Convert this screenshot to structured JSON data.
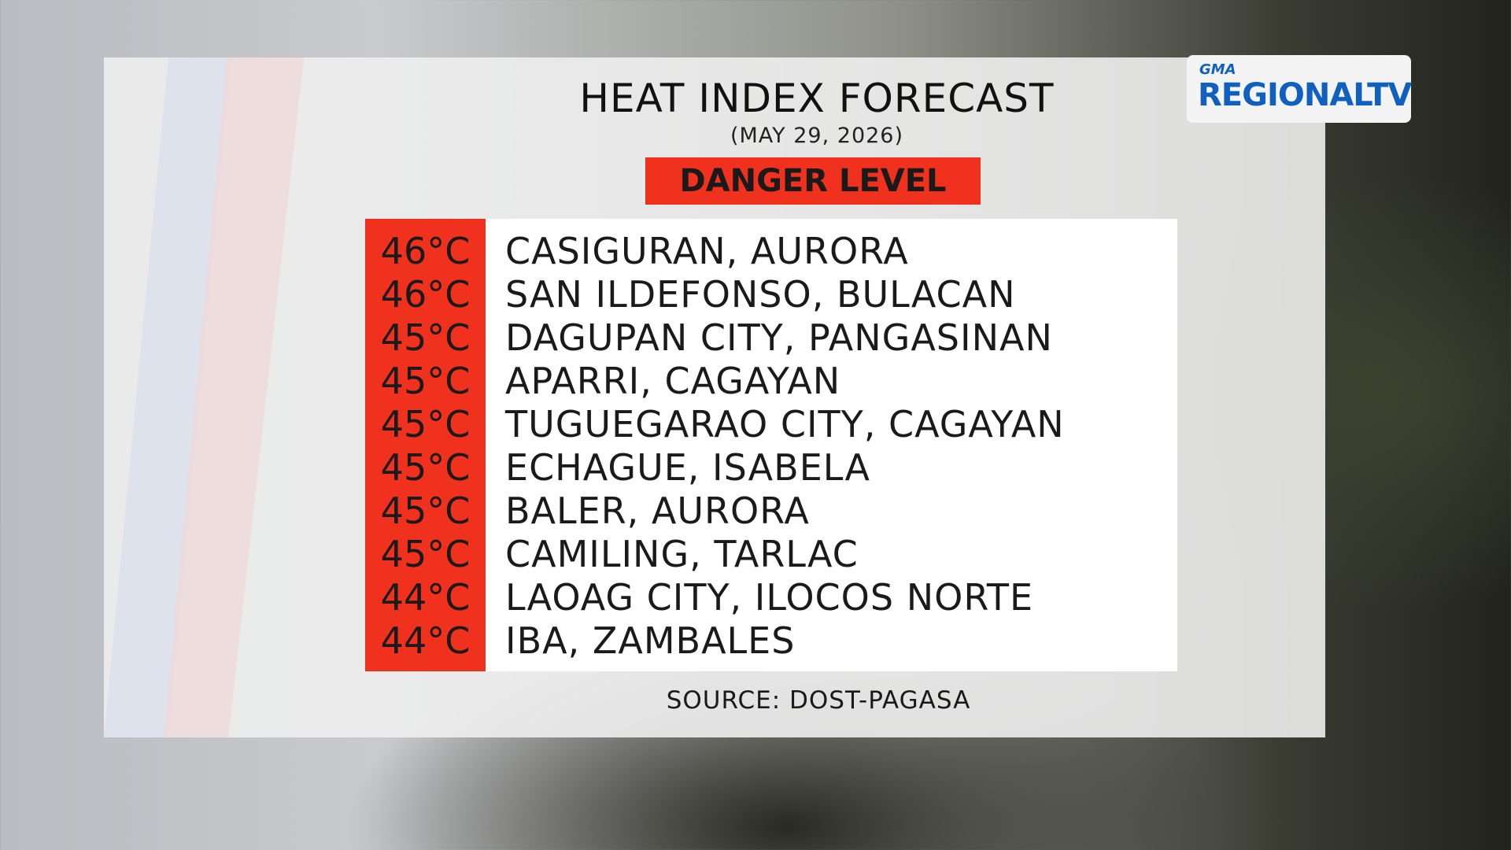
{
  "logo": {
    "brand": "GMA",
    "name": "REGIONALTV"
  },
  "header": {
    "title": "HEAT INDEX FORECAST",
    "date": "(MAY 29, 2026)"
  },
  "level": "DANGER LEVEL",
  "table": {
    "rows": [
      [
        "46°C",
        "CASIGURAN, AURORA"
      ],
      [
        "46°C",
        "SAN ILDEFONSO, BULACAN"
      ],
      [
        "45°C",
        "DAGUPAN CITY, PANGASINAN"
      ],
      [
        "45°C",
        "APARRI, CAGAYAN"
      ],
      [
        "45°C",
        "TUGUEGARAO CITY, CAGAYAN"
      ],
      [
        "45°C",
        "ECHAGUE, ISABELA"
      ],
      [
        "45°C",
        "BALER, AURORA"
      ],
      [
        "45°C",
        "CAMILING, TARLAC"
      ],
      [
        "44°C",
        "LAOAG CITY, ILOCOS NORTE"
      ],
      [
        "44°C",
        "IBA, ZAMBALES"
      ]
    ]
  },
  "source": "SOURCE: DOST-PAGASA"
}
